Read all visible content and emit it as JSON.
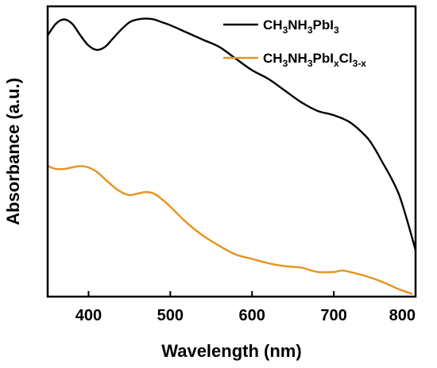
{
  "chart_data": {
    "type": "line",
    "xlabel": "Wavelength (nm)",
    "ylabel": "Absorbance (a.u.)",
    "xlim": [
      350,
      800
    ],
    "ylim": [
      0,
      1
    ],
    "xticks": [
      400,
      500,
      600,
      700,
      800
    ],
    "yticks_shown": false,
    "legend_position": "top-right",
    "series": [
      {
        "name": "CH3NH3PbI3",
        "legend_parts": [
          {
            "t": "CH",
            "sub": false
          },
          {
            "t": "3",
            "sub": true
          },
          {
            "t": "NH",
            "sub": false
          },
          {
            "t": "3",
            "sub": true
          },
          {
            "t": "PbI",
            "sub": false
          },
          {
            "t": "3",
            "sub": true
          }
        ],
        "color": "#000000",
        "x": [
          350,
          360,
          370,
          380,
          390,
          400,
          410,
          420,
          430,
          440,
          450,
          460,
          470,
          480,
          490,
          500,
          520,
          540,
          560,
          580,
          600,
          620,
          640,
          660,
          680,
          700,
          720,
          740,
          750,
          760,
          770,
          780,
          790,
          800
        ],
        "y": [
          0.9,
          0.94,
          0.955,
          0.94,
          0.9,
          0.865,
          0.85,
          0.86,
          0.89,
          0.92,
          0.945,
          0.955,
          0.958,
          0.955,
          0.945,
          0.935,
          0.91,
          0.885,
          0.86,
          0.82,
          0.78,
          0.75,
          0.71,
          0.67,
          0.64,
          0.625,
          0.6,
          0.55,
          0.51,
          0.46,
          0.41,
          0.35,
          0.26,
          0.16
        ]
      },
      {
        "name": "CH3NH3PbIxCl3-x",
        "legend_parts": [
          {
            "t": "CH",
            "sub": false
          },
          {
            "t": "3",
            "sub": true
          },
          {
            "t": "NH",
            "sub": false
          },
          {
            "t": "3",
            "sub": true
          },
          {
            "t": "PbI",
            "sub": false
          },
          {
            "t": "x",
            "sub": true
          },
          {
            "t": "Cl",
            "sub": false
          },
          {
            "t": "3-x",
            "sub": true
          }
        ],
        "color": "#e8921e",
        "x": [
          350,
          360,
          370,
          380,
          390,
          400,
          410,
          420,
          430,
          440,
          450,
          460,
          470,
          480,
          490,
          500,
          520,
          540,
          560,
          580,
          600,
          620,
          640,
          660,
          680,
          700,
          710,
          720,
          740,
          760,
          780,
          795
        ],
        "y": [
          0.45,
          0.44,
          0.44,
          0.445,
          0.45,
          0.445,
          0.43,
          0.405,
          0.38,
          0.36,
          0.35,
          0.355,
          0.36,
          0.355,
          0.335,
          0.31,
          0.255,
          0.21,
          0.175,
          0.145,
          0.13,
          0.115,
          0.105,
          0.1,
          0.085,
          0.085,
          0.09,
          0.085,
          0.07,
          0.05,
          0.025,
          0.01
        ]
      }
    ]
  }
}
